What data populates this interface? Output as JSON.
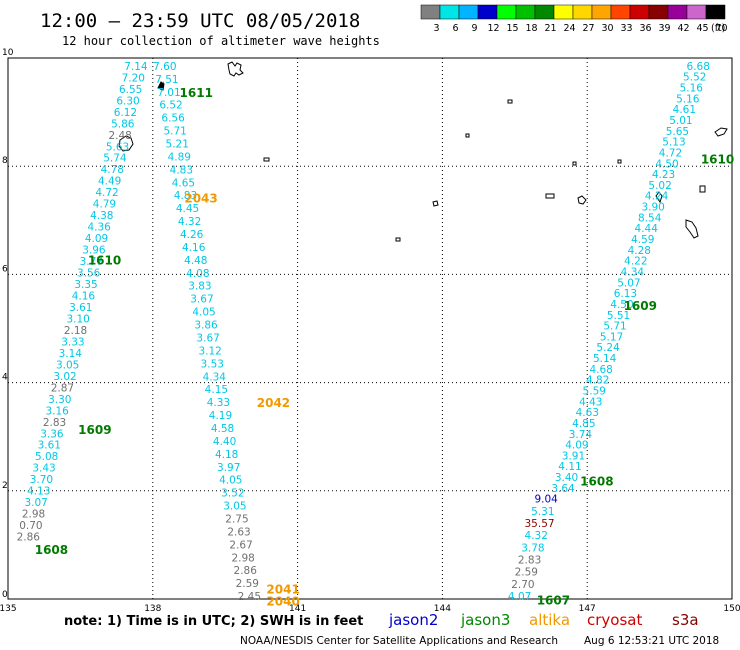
{
  "header": {
    "title": "12:00 – 23:59 UTC 08/05/2018",
    "subtitle": "12 hour collection of altimeter wave heights"
  },
  "legend": {
    "unit": "(ft)",
    "bins": [
      {
        "label": "3",
        "color": "#808080"
      },
      {
        "label": "6",
        "color": "#00e5e5"
      },
      {
        "label": "9",
        "color": "#00b4ff"
      },
      {
        "label": "12",
        "color": "#0000cc"
      },
      {
        "label": "15",
        "color": "#00ff00"
      },
      {
        "label": "18",
        "color": "#00c000"
      },
      {
        "label": "21",
        "color": "#008800"
      },
      {
        "label": "24",
        "color": "#ffff00"
      },
      {
        "label": "27",
        "color": "#ffd700"
      },
      {
        "label": "30",
        "color": "#ffa500"
      },
      {
        "label": "33",
        "color": "#ff4500"
      },
      {
        "label": "36",
        "color": "#cc0000"
      },
      {
        "label": "39",
        "color": "#880000"
      },
      {
        "label": "42",
        "color": "#990099"
      },
      {
        "label": "45",
        "color": "#cc66cc"
      },
      {
        "label": "70",
        "color": "#000000"
      }
    ]
  },
  "map": {
    "lon_range": [
      135,
      150
    ],
    "lat_range": [
      0,
      10
    ],
    "lon_ticks": [
      "135",
      "138",
      "141",
      "144",
      "147",
      "150"
    ],
    "lat_ticks": [
      "0",
      "2",
      "4",
      "6",
      "8",
      "10"
    ],
    "grid": true
  },
  "colors": {
    "cyan": "#00c8e6",
    "gray": "#707070",
    "green": "#007a00",
    "orange": "#f29900",
    "blue": "#0000cc",
    "darkred": "#8b0000"
  },
  "tracks": [
    {
      "id": "west-jason3",
      "values": [
        "7.14",
        "7.20",
        "6.55",
        "6.30",
        "6.12",
        "5.86",
        "2.48",
        "5.63",
        "5.74",
        "4.78",
        "4.49",
        "4.72",
        "4.79",
        "4.38",
        "4.36",
        "4.09",
        "3.96",
        "3.77",
        "3.56",
        "3.35",
        "4.16",
        "3.61",
        "3.10",
        "2.18",
        "3.33",
        "3.14",
        "3.05",
        "3.02",
        "2.87",
        "3.30",
        "3.16",
        "2.83",
        "3.36",
        "3.61",
        "5.08",
        "3.43",
        "3.70",
        "4.13",
        "3.07",
        "2.98",
        "0.70",
        "2.86"
      ],
      "gray": [
        "2.48",
        "2.18",
        "2.87",
        "2.83",
        "2.98",
        "0.70",
        "2.86"
      ],
      "start": {
        "lon": 137.65,
        "lat": 9.78
      },
      "end": {
        "lon": 135.42,
        "lat": 1.08
      }
    },
    {
      "id": "middle-jason3",
      "values": [
        "7.60",
        "7.51",
        "7.01",
        "6.52",
        "6.56",
        "5.71",
        "5.21",
        "4.89",
        "4.83",
        "4.65",
        "4.83",
        "4.45",
        "4.32",
        "4.26",
        "4.16",
        "4.48",
        "4.08",
        "3.83",
        "3.67",
        "4.05",
        "3.86",
        "3.67",
        "3.12",
        "3.53",
        "4.34",
        "4.15",
        "4.33",
        "4.19",
        "4.58",
        "4.40",
        "4.18",
        "3.97",
        "4.05",
        "3.52",
        "3.05",
        "2.75",
        "2.63",
        "2.67",
        "2.98",
        "2.86",
        "2.59",
        "2.45"
      ],
      "gray": [
        "2.75",
        "2.63",
        "2.67",
        "2.98",
        "2.86",
        "2.59",
        "2.45"
      ],
      "start": {
        "lon": 138.25,
        "lat": 9.78
      },
      "end": {
        "lon": 140.0,
        "lat": -0.02
      }
    },
    {
      "id": "east-jason3",
      "values": [
        "6.68",
        "5.52",
        "5.16",
        "5.16",
        "4.61",
        "5.01",
        "5.65",
        "5.13",
        "4.72",
        "4.50",
        "4.23",
        "5.02",
        "4.24",
        "3.90",
        "8.54",
        "4.44",
        "4.59",
        "4.28",
        "4.22",
        "4.34",
        "5.07",
        "6.13",
        "4.50",
        "5.51",
        "5.71",
        "5.17",
        "5.24",
        "5.14",
        "4.68",
        "4.82",
        "5.59",
        "4.43",
        "4.63",
        "4.85",
        "3.74",
        "4.09",
        "3.91",
        "4.11",
        "3.40",
        "3.64"
      ],
      "gray": [],
      "start": {
        "lon": 149.3,
        "lat": 9.78
      },
      "end": {
        "lon": 146.5,
        "lat": 1.98
      }
    },
    {
      "id": "east-lower-mixed",
      "values": [
        "9.04",
        "5.31",
        "35.57",
        "4.32",
        "3.78",
        "2.83",
        "2.59",
        "2.70",
        "4.07"
      ],
      "colors": [
        "blue",
        "cyan",
        "darkred",
        "cyan",
        "cyan",
        "gray",
        "gray",
        "gray",
        "cyan"
      ],
      "start": {
        "lon": 146.15,
        "lat": 1.78
      },
      "end": {
        "lon": 145.6,
        "lat": -0.02
      }
    }
  ],
  "time_labels": [
    {
      "text": "1611",
      "lon": 138.9,
      "lat": 9.28,
      "color": "green"
    },
    {
      "text": "2043",
      "lon": 139.0,
      "lat": 7.33,
      "color": "orange"
    },
    {
      "text": "1610",
      "lon": 137.0,
      "lat": 6.18,
      "color": "green"
    },
    {
      "text": "1609",
      "lon": 136.8,
      "lat": 3.05,
      "color": "green"
    },
    {
      "text": "1608",
      "lon": 135.9,
      "lat": 0.83,
      "color": "green"
    },
    {
      "text": "2042",
      "lon": 140.5,
      "lat": 3.55,
      "color": "orange"
    },
    {
      "text": "2041",
      "lon": 140.7,
      "lat": 0.1,
      "color": "orange"
    },
    {
      "text": "2040",
      "lon": 140.7,
      "lat": -0.12,
      "color": "orange"
    },
    {
      "text": "1610",
      "lon": 149.7,
      "lat": 8.05,
      "color": "green"
    },
    {
      "text": "1609",
      "lon": 148.1,
      "lat": 5.34,
      "color": "green"
    },
    {
      "text": "1608",
      "lon": 147.2,
      "lat": 2.1,
      "color": "green"
    },
    {
      "text": "1607",
      "lon": 146.3,
      "lat": -0.1,
      "color": "green"
    }
  ],
  "footer": {
    "note": "note:  1) Time is in UTC;  2) SWH is in feet",
    "satellites": [
      {
        "name": "jason2",
        "color": "#0000cc"
      },
      {
        "name": "jason3",
        "color": "#008800"
      },
      {
        "name": "altika",
        "color": "#f29900"
      },
      {
        "name": "cryosat",
        "color": "#cc0000"
      },
      {
        "name": "s3a",
        "color": "#880000"
      }
    ],
    "credit": "NOAA/NESDIS Center for Satellite Applications and Research",
    "timestamp": "Aug  6 12:53:21 UTC 2018"
  }
}
